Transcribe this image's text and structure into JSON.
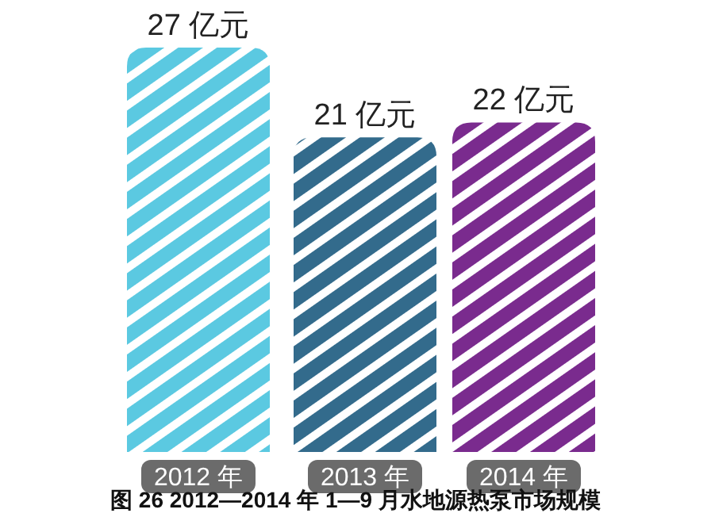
{
  "chart_data": {
    "type": "bar",
    "title": "图 26   2012—2014 年 1—9 月水地源热泵市场规模",
    "categories": [
      "2012 年",
      "2013 年",
      "2014 年"
    ],
    "values": [
      27,
      21,
      22
    ],
    "colors": [
      "#5bc9e1",
      "#336b8c",
      "#7a2b8e"
    ],
    "value_labels": [
      "27 亿元",
      "21 亿元",
      "22 亿元"
    ]
  }
}
